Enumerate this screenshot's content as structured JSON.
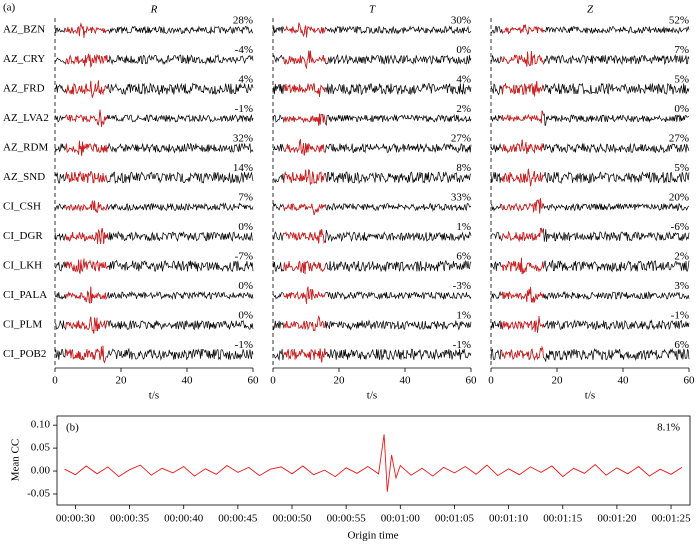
{
  "chart_data": [
    {
      "type": "waveform",
      "panel_label": "(a)",
      "categories": [
        "AZ_BZN",
        "AZ_CRY",
        "AZ_FRD",
        "AZ_LVA2",
        "AZ_RDM",
        "AZ_SND",
        "CI_CSH",
        "CI_DGR",
        "CI_LKH",
        "CI_PALA",
        "CI_PLM",
        "CI_POB2"
      ],
      "series": [
        {
          "name": "R",
          "values": [
            28,
            -4,
            4,
            -1,
            32,
            14,
            7,
            0,
            -7,
            0,
            0,
            -1
          ],
          "value_labels": [
            "28%",
            "-4%",
            "4%",
            "-1%",
            "32%",
            "14%",
            "7%",
            "0%",
            "-7%",
            "0%",
            "0%",
            "-1%"
          ]
        },
        {
          "name": "T",
          "values": [
            30,
            0,
            4,
            2,
            27,
            8,
            33,
            1,
            6,
            -3,
            1,
            -1
          ],
          "value_labels": [
            "30%",
            "0%",
            "4%",
            "2%",
            "27%",
            "8%",
            "33%",
            "1%",
            "6%",
            "-3%",
            "1%",
            "-1%"
          ]
        },
        {
          "name": "Z",
          "values": [
            52,
            7,
            5,
            0,
            27,
            5,
            20,
            -6,
            2,
            3,
            -1,
            6
          ],
          "value_labels": [
            "52%",
            "7%",
            "5%",
            "0%",
            "27%",
            "5%",
            "20%",
            "-6%",
            "2%",
            "3%",
            "-1%",
            "6%"
          ]
        }
      ],
      "xlim": [
        0,
        60
      ],
      "xticks": [
        0,
        20,
        40,
        60
      ],
      "xlabel": "t/s"
    },
    {
      "type": "line",
      "panel_label": "(b)",
      "ylabel": "Mean CC",
      "xlabel": "Origin time",
      "annotation": "8.1%",
      "color": "#e8191b",
      "x": [
        29,
        30,
        31,
        32,
        33,
        34,
        35,
        36,
        37,
        38,
        39,
        40,
        41,
        42,
        43,
        44,
        45,
        46,
        47,
        48,
        49,
        50,
        51,
        52,
        53,
        54,
        55,
        56,
        57,
        58,
        58.5,
        58.8,
        59.2,
        59.6,
        60,
        61,
        62,
        63,
        64,
        65,
        66,
        67,
        68,
        69,
        70,
        71,
        72,
        73,
        74,
        75,
        76,
        77,
        78,
        79,
        80,
        81,
        82,
        83,
        84,
        85,
        86
      ],
      "values": [
        0.004,
        -0.008,
        0.011,
        -0.006,
        0.009,
        -0.012,
        0.003,
        0.013,
        -0.009,
        0.006,
        -0.004,
        0.01,
        -0.011,
        0.005,
        -0.007,
        0.012,
        -0.003,
        0.008,
        -0.01,
        0.004,
        0.009,
        -0.006,
        0.011,
        -0.008,
        0.002,
        -0.012,
        0.007,
        -0.005,
        0.01,
        -0.006,
        0.08,
        -0.045,
        0.035,
        -0.015,
        0.012,
        -0.009,
        0.006,
        -0.011,
        0.008,
        -0.004,
        0.01,
        -0.007,
        0.013,
        -0.01,
        0.005,
        -0.008,
        0.009,
        -0.003,
        0.011,
        -0.012,
        0.006,
        -0.005,
        0.014,
        -0.009,
        0.007,
        -0.006,
        0.01,
        -0.011,
        0.004,
        -0.007,
        0.008
      ],
      "xlim": [
        28.3,
        86.75
      ],
      "xticks": [
        {
          "value": 30,
          "label": "00:00:30"
        },
        {
          "value": 35,
          "label": "00:00:35"
        },
        {
          "value": 40,
          "label": "00:00:40"
        },
        {
          "value": 45,
          "label": "00:00:45"
        },
        {
          "value": 50,
          "label": "00:00:50"
        },
        {
          "value": 55,
          "label": "00:00:55"
        },
        {
          "value": 60,
          "label": "00:01:00"
        },
        {
          "value": 65,
          "label": "00:01:05"
        },
        {
          "value": 70,
          "label": "00:01:10"
        },
        {
          "value": 75,
          "label": "00:01:15"
        },
        {
          "value": 80,
          "label": "00:01:20"
        },
        {
          "value": 85,
          "label": "00:01:25"
        }
      ],
      "ylim": [
        -0.074,
        0.12
      ],
      "yticks": [
        -0.05,
        {
          "value": 0,
          "label": "0.00"
        },
        0.05,
        {
          "value": 0.1,
          "label": "0.10"
        }
      ]
    }
  ]
}
